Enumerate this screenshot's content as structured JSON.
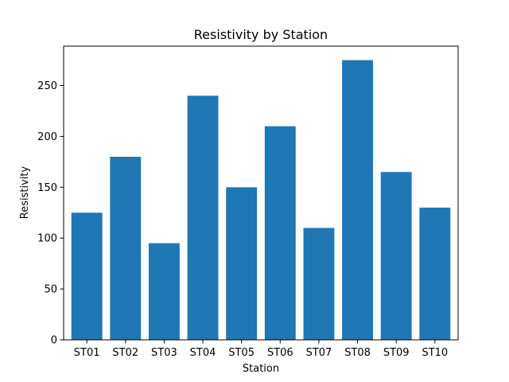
{
  "chart_data": {
    "type": "bar",
    "title": "Resistivity by Station",
    "xlabel": "Station",
    "ylabel": "Resistivity",
    "categories": [
      "ST01",
      "ST02",
      "ST03",
      "ST04",
      "ST05",
      "ST06",
      "ST07",
      "ST08",
      "ST09",
      "ST10"
    ],
    "values": [
      125,
      180,
      95,
      240,
      150,
      210,
      110,
      275,
      165,
      130
    ],
    "ylim": [
      0,
      288.75
    ],
    "yticks": [
      0,
      50,
      100,
      150,
      200,
      250
    ],
    "bar_color": "#1f77b4",
    "grid": false,
    "legend": "none"
  }
}
